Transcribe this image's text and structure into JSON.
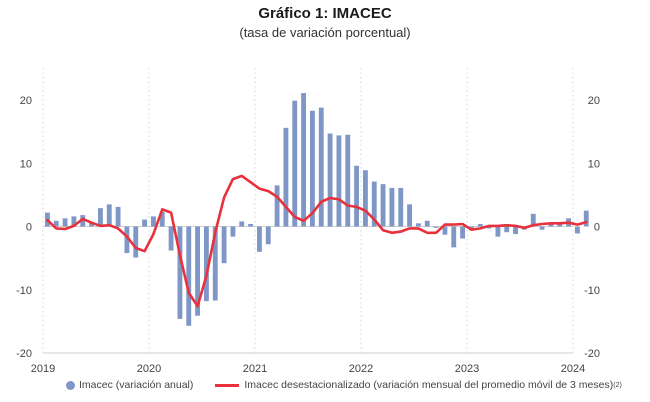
{
  "header": {
    "title": "Gráfico 1:  IMACEC",
    "subtitle": "(tasa de variación porcentual)"
  },
  "legend": {
    "bars_label": "Imacec (variación anual)",
    "line_label": "Imacec desestacionalizado (variación mensual del promedio móvil de 3 meses)",
    "line_note": "(2)"
  },
  "chart_data": {
    "type": "bar+line",
    "title": "Gráfico 1:  IMACEC",
    "subtitle": "(tasa de variación porcentual)",
    "ylim": [
      -20,
      20
    ],
    "yticks": [
      -20,
      -10,
      0,
      10,
      20
    ],
    "ytick_labels": [
      "-20",
      "-10",
      "0",
      "10",
      "20"
    ],
    "xlim": [
      "2019-01",
      "2024-01"
    ],
    "xticks": [
      "2019",
      "2020",
      "2021",
      "2022",
      "2023",
      "2024"
    ],
    "grid": "vertical dotted at year starts",
    "colors": {
      "bars": "#7f97c6",
      "line": "#e8313b",
      "axis": "#cfcfcf",
      "grid": "#d4d4d4"
    },
    "series": [
      {
        "name": "Imacec (variación anual)",
        "type": "bar",
        "values": [
          2.2,
          0.9,
          1.3,
          1.6,
          1.8,
          0.7,
          2.9,
          3.5,
          3.1,
          -4.2,
          -4.9,
          1.1,
          1.6,
          2.3,
          -3.8,
          -14.6,
          -15.7,
          -14.1,
          -11.8,
          -11.7,
          -5.8,
          -1.6,
          0.8,
          0.4,
          -4.0,
          -2.8,
          6.5,
          15.6,
          19.9,
          21.1,
          18.3,
          18.8,
          14.7,
          14.4,
          14.5,
          9.6,
          8.9,
          7.1,
          6.7,
          6.1,
          6.1,
          3.5,
          0.5,
          0.9,
          -0.2,
          -1.3,
          -3.3,
          -1.9,
          -0.5,
          0.4,
          -0.3,
          -1.6,
          -0.9,
          -1.2,
          -0.5,
          2.0,
          -0.5,
          0.4,
          0.5,
          1.3,
          -1.1,
          2.5
        ]
      },
      {
        "name": "Imacec desestacionalizado (variación mensual del promedio móvil de 3 meses)",
        "type": "line",
        "values": [
          1.0,
          -0.3,
          -0.4,
          0.1,
          1.2,
          0.6,
          0.1,
          0.2,
          -0.3,
          -1.6,
          -3.4,
          -3.9,
          -1.2,
          2.7,
          2.2,
          -4.5,
          -10.5,
          -12.6,
          -7.8,
          -0.9,
          4.6,
          7.5,
          8.0,
          7.0,
          6.0,
          5.6,
          4.7,
          3.1,
          1.5,
          0.9,
          2.1,
          3.9,
          4.5,
          4.3,
          3.3,
          3.1,
          2.5,
          1.1,
          -0.6,
          -1.0,
          -0.8,
          -0.3,
          -0.3,
          -1.0,
          -1.0,
          0.3,
          0.3,
          0.4,
          -0.5,
          -0.3,
          0.1,
          0.1,
          0.2,
          0.1,
          -0.2,
          0.2,
          0.4,
          0.5,
          0.5,
          0.6,
          0.3,
          0.7
        ]
      }
    ]
  }
}
